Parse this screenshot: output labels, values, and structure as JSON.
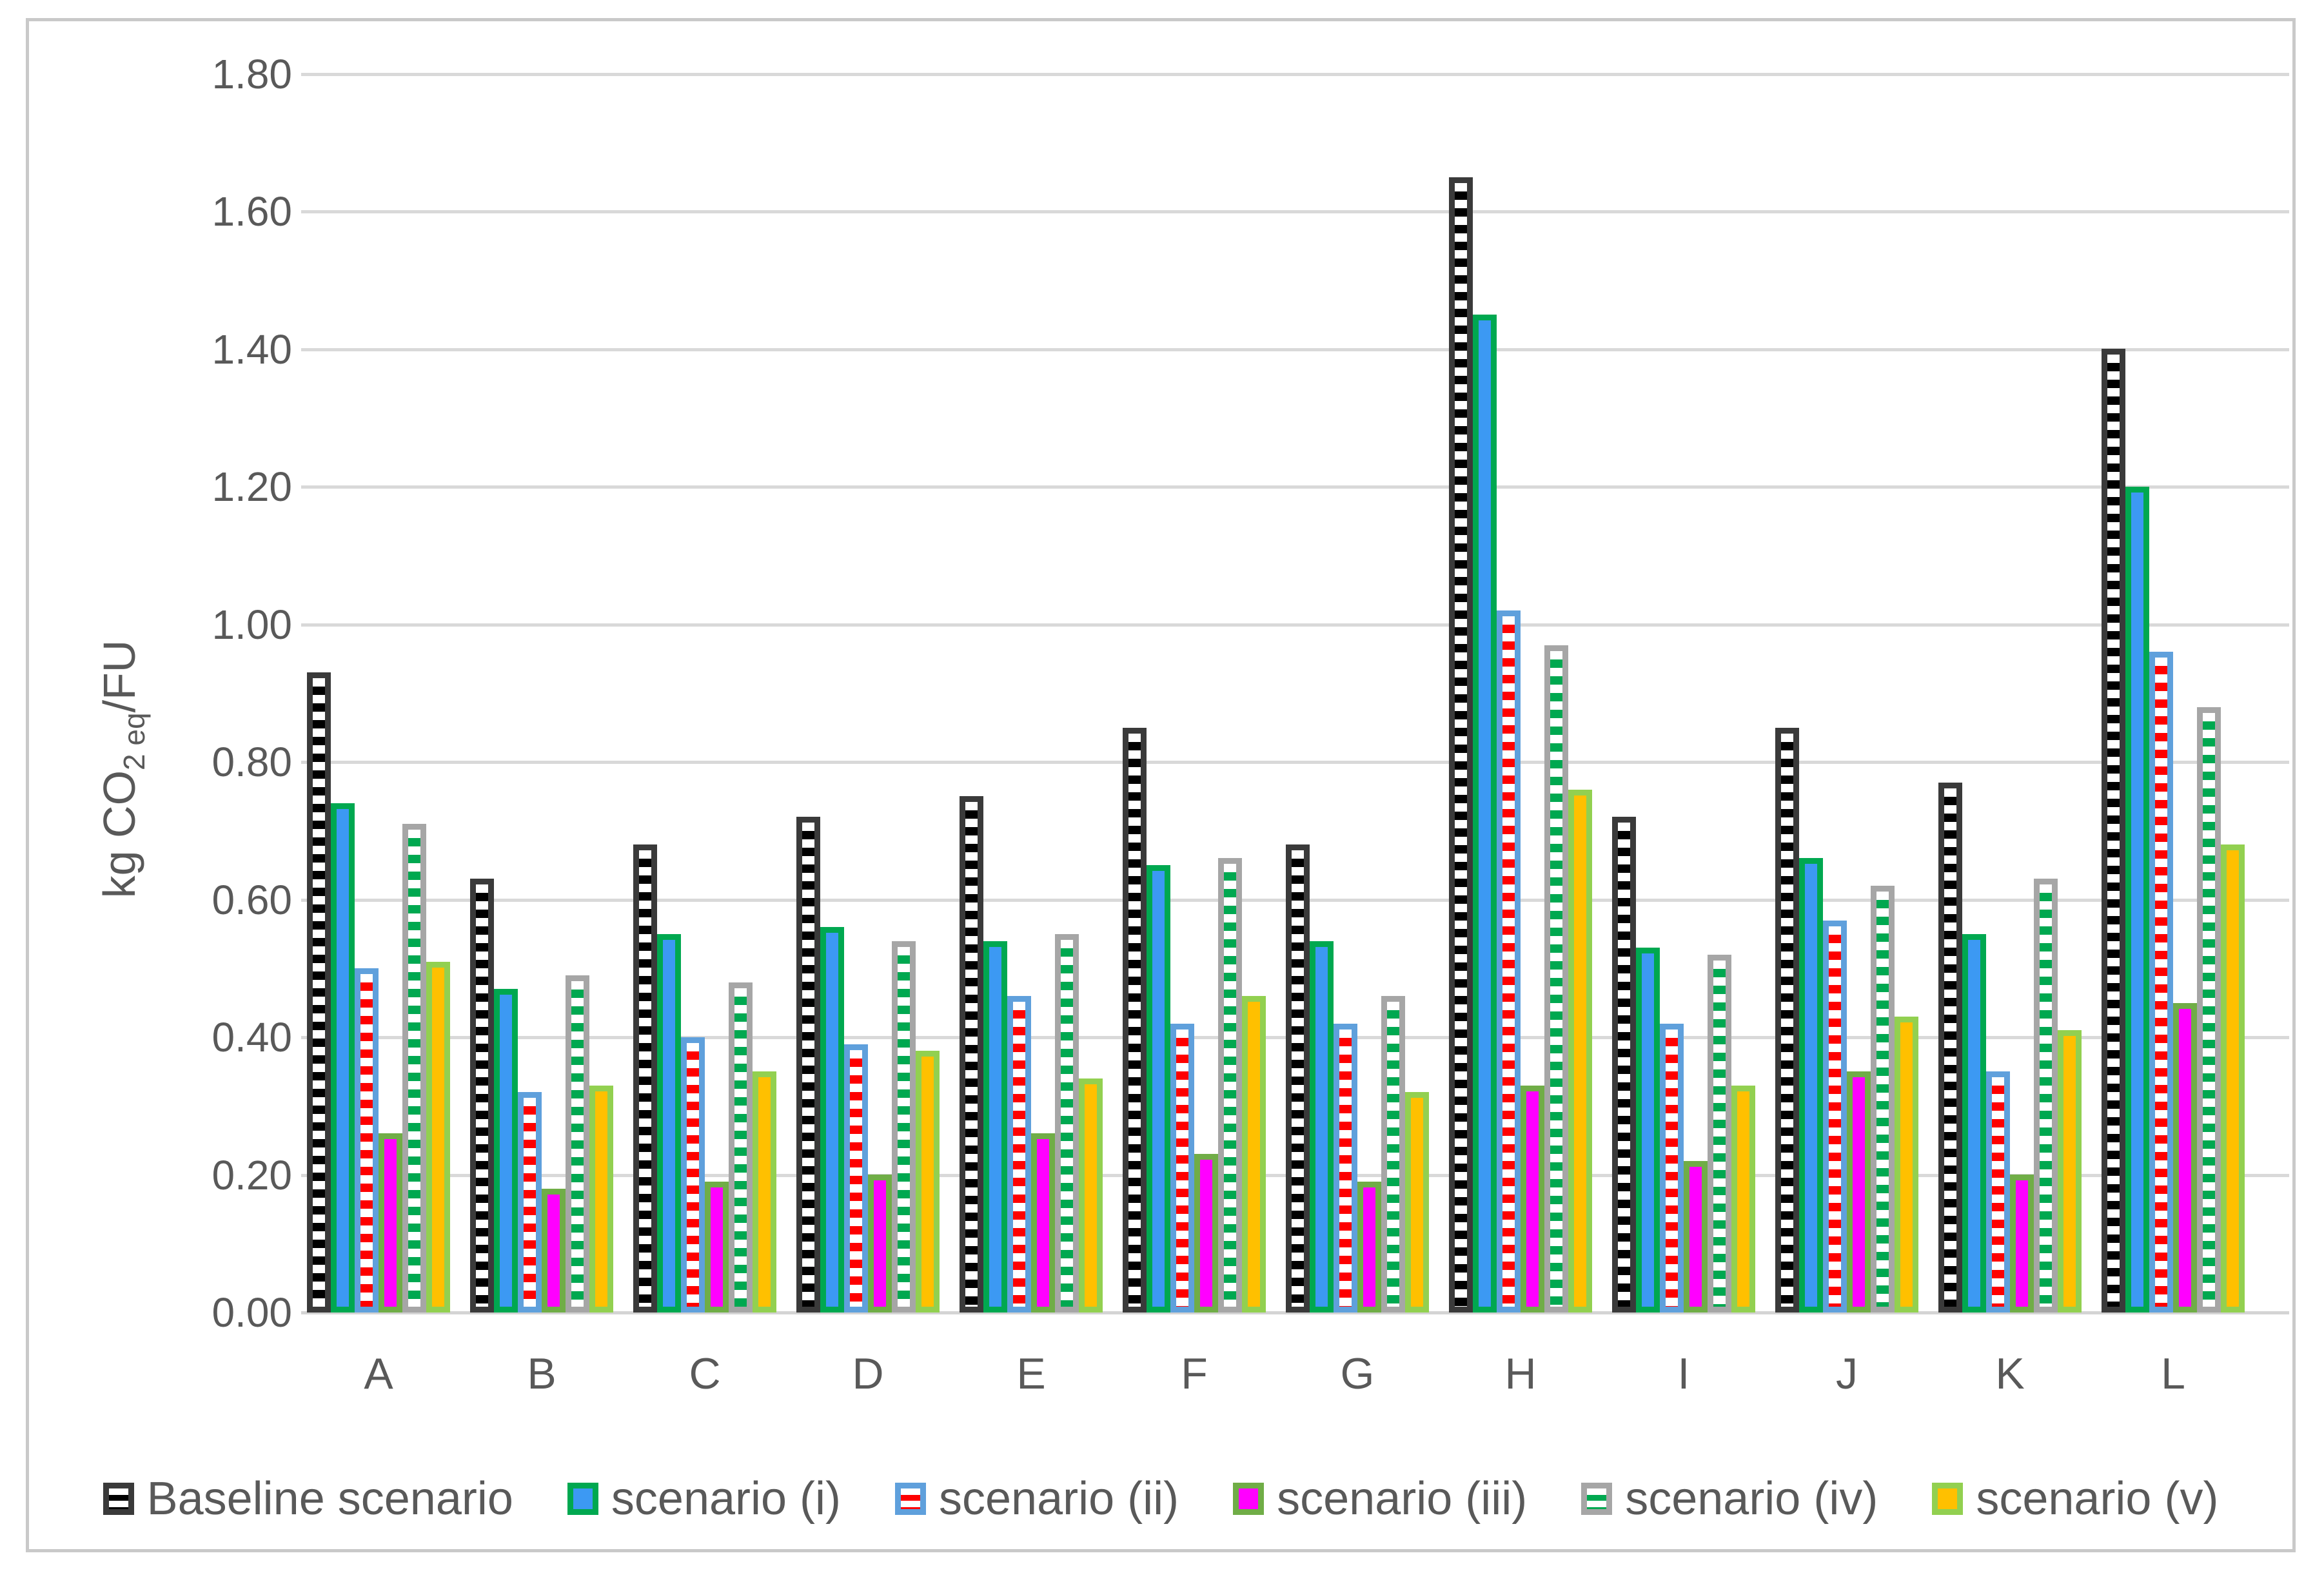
{
  "chart_data": {
    "type": "bar",
    "title": "",
    "ylabel": "kg CO2 eq/FU",
    "ylabel_parts": {
      "pre": "kg CO",
      "sub": "2 eq",
      "post": "/FU"
    },
    "xlabel": "",
    "ylim": [
      0.0,
      1.8
    ],
    "ytick_step": 0.2,
    "ytick_labels": [
      "0.00",
      "0.20",
      "0.40",
      "0.60",
      "0.80",
      "1.00",
      "1.20",
      "1.40",
      "1.60",
      "1.80"
    ],
    "grid": true,
    "gridline_color": "#D9D9D9",
    "legend_position": "bottom",
    "text_color": "#595959",
    "frame_color": "#C9C9C9",
    "categories": [
      "A",
      "B",
      "C",
      "D",
      "E",
      "F",
      "G",
      "H",
      "I",
      "J",
      "K",
      "L"
    ],
    "series": [
      {
        "name": "Baseline scenario",
        "style": "striped",
        "stripe_color": "#000000",
        "border_color": "#3A3A3A",
        "values": [
          0.93,
          0.63,
          0.68,
          0.72,
          0.75,
          0.85,
          0.68,
          1.65,
          0.72,
          0.85,
          0.77,
          1.4
        ]
      },
      {
        "name": "scenario (i)",
        "style": "solid",
        "fill_color": "#3C99F3",
        "border_color": "#00A850",
        "values": [
          0.74,
          0.47,
          0.55,
          0.56,
          0.54,
          0.65,
          0.54,
          1.45,
          0.53,
          0.66,
          0.55,
          1.2
        ]
      },
      {
        "name": "scenario (ii)",
        "style": "striped",
        "stripe_color": "#FE0000",
        "border_color": "#5FA0DC",
        "values": [
          0.5,
          0.32,
          0.4,
          0.39,
          0.46,
          0.42,
          0.42,
          1.02,
          0.42,
          0.57,
          0.35,
          0.96
        ]
      },
      {
        "name": "scenario (iii)",
        "style": "solid",
        "fill_color": "#FF00FF",
        "border_color": "#70AD47",
        "values": [
          0.26,
          0.18,
          0.19,
          0.2,
          0.26,
          0.23,
          0.19,
          0.33,
          0.22,
          0.35,
          0.2,
          0.45
        ]
      },
      {
        "name": "scenario (iv)",
        "style": "striped",
        "stripe_color": "#00A850",
        "border_color": "#A6A6A6",
        "values": [
          0.71,
          0.49,
          0.48,
          0.54,
          0.55,
          0.66,
          0.46,
          0.97,
          0.52,
          0.62,
          0.63,
          0.88
        ]
      },
      {
        "name": "scenario (v)",
        "style": "solid",
        "fill_color": "#FFC000",
        "border_color": "#92D050",
        "values": [
          0.51,
          0.33,
          0.35,
          0.38,
          0.34,
          0.46,
          0.32,
          0.76,
          0.33,
          0.43,
          0.41,
          0.68
        ]
      }
    ]
  }
}
